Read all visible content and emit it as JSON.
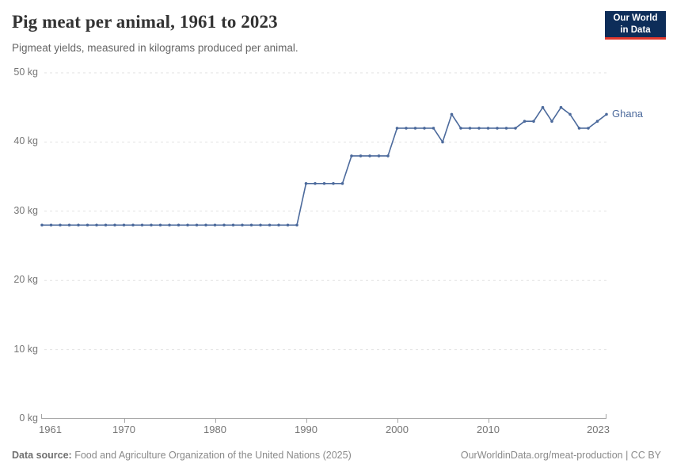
{
  "header": {
    "title": "Pig meat per animal, 1961 to 2023",
    "subtitle": "Pigmeat yields, measured in kilograms produced per animal.",
    "logo": {
      "line1": "Our World",
      "line2": "in Data",
      "bg_color": "#0d2d59",
      "bar_color": "#e0382d"
    }
  },
  "chart_data": {
    "type": "line",
    "title": "Pig meat per animal, 1961 to 2023",
    "xlabel": "",
    "ylabel": "",
    "ylim": [
      0,
      50
    ],
    "xlim": [
      1961,
      2023
    ],
    "grid": "horizontal-dashed",
    "legend_position": "end-of-line",
    "yticks": [
      {
        "value": 0,
        "label": "0 kg"
      },
      {
        "value": 10,
        "label": "10 kg"
      },
      {
        "value": 20,
        "label": "20 kg"
      },
      {
        "value": 30,
        "label": "30 kg"
      },
      {
        "value": 40,
        "label": "40 kg"
      },
      {
        "value": 50,
        "label": "50 kg"
      }
    ],
    "xticks": [
      {
        "value": 1961,
        "label": "1961"
      },
      {
        "value": 1970,
        "label": "1970"
      },
      {
        "value": 1980,
        "label": "1980"
      },
      {
        "value": 1990,
        "label": "1990"
      },
      {
        "value": 2000,
        "label": "2000"
      },
      {
        "value": 2010,
        "label": "2010"
      },
      {
        "value": 2023,
        "label": "2023"
      }
    ],
    "series": [
      {
        "name": "Ghana",
        "color": "#4C6A9C",
        "x": [
          1961,
          1962,
          1963,
          1964,
          1965,
          1966,
          1967,
          1968,
          1969,
          1970,
          1971,
          1972,
          1973,
          1974,
          1975,
          1976,
          1977,
          1978,
          1979,
          1980,
          1981,
          1982,
          1983,
          1984,
          1985,
          1986,
          1987,
          1988,
          1989,
          1990,
          1991,
          1992,
          1993,
          1994,
          1995,
          1996,
          1997,
          1998,
          1999,
          2000,
          2001,
          2002,
          2003,
          2004,
          2005,
          2006,
          2007,
          2008,
          2009,
          2010,
          2011,
          2012,
          2013,
          2014,
          2015,
          2016,
          2017,
          2018,
          2019,
          2020,
          2021,
          2022,
          2023
        ],
        "values": [
          28,
          28,
          28,
          28,
          28,
          28,
          28,
          28,
          28,
          28,
          28,
          28,
          28,
          28,
          28,
          28,
          28,
          28,
          28,
          28,
          28,
          28,
          28,
          28,
          28,
          28,
          28,
          28,
          28,
          34,
          34,
          34,
          34,
          34,
          38,
          38,
          38,
          38,
          38,
          42,
          42,
          42,
          42,
          42,
          40,
          44,
          42,
          42,
          42,
          42,
          42,
          42,
          42,
          43,
          43,
          45,
          43,
          45,
          44,
          42,
          42,
          43,
          44
        ]
      }
    ]
  },
  "footer": {
    "source_label": "Data source:",
    "source_text": "Food and Agriculture Organization of the United Nations (2025)",
    "link_text": "OurWorldinData.org/meat-production | CC BY"
  }
}
